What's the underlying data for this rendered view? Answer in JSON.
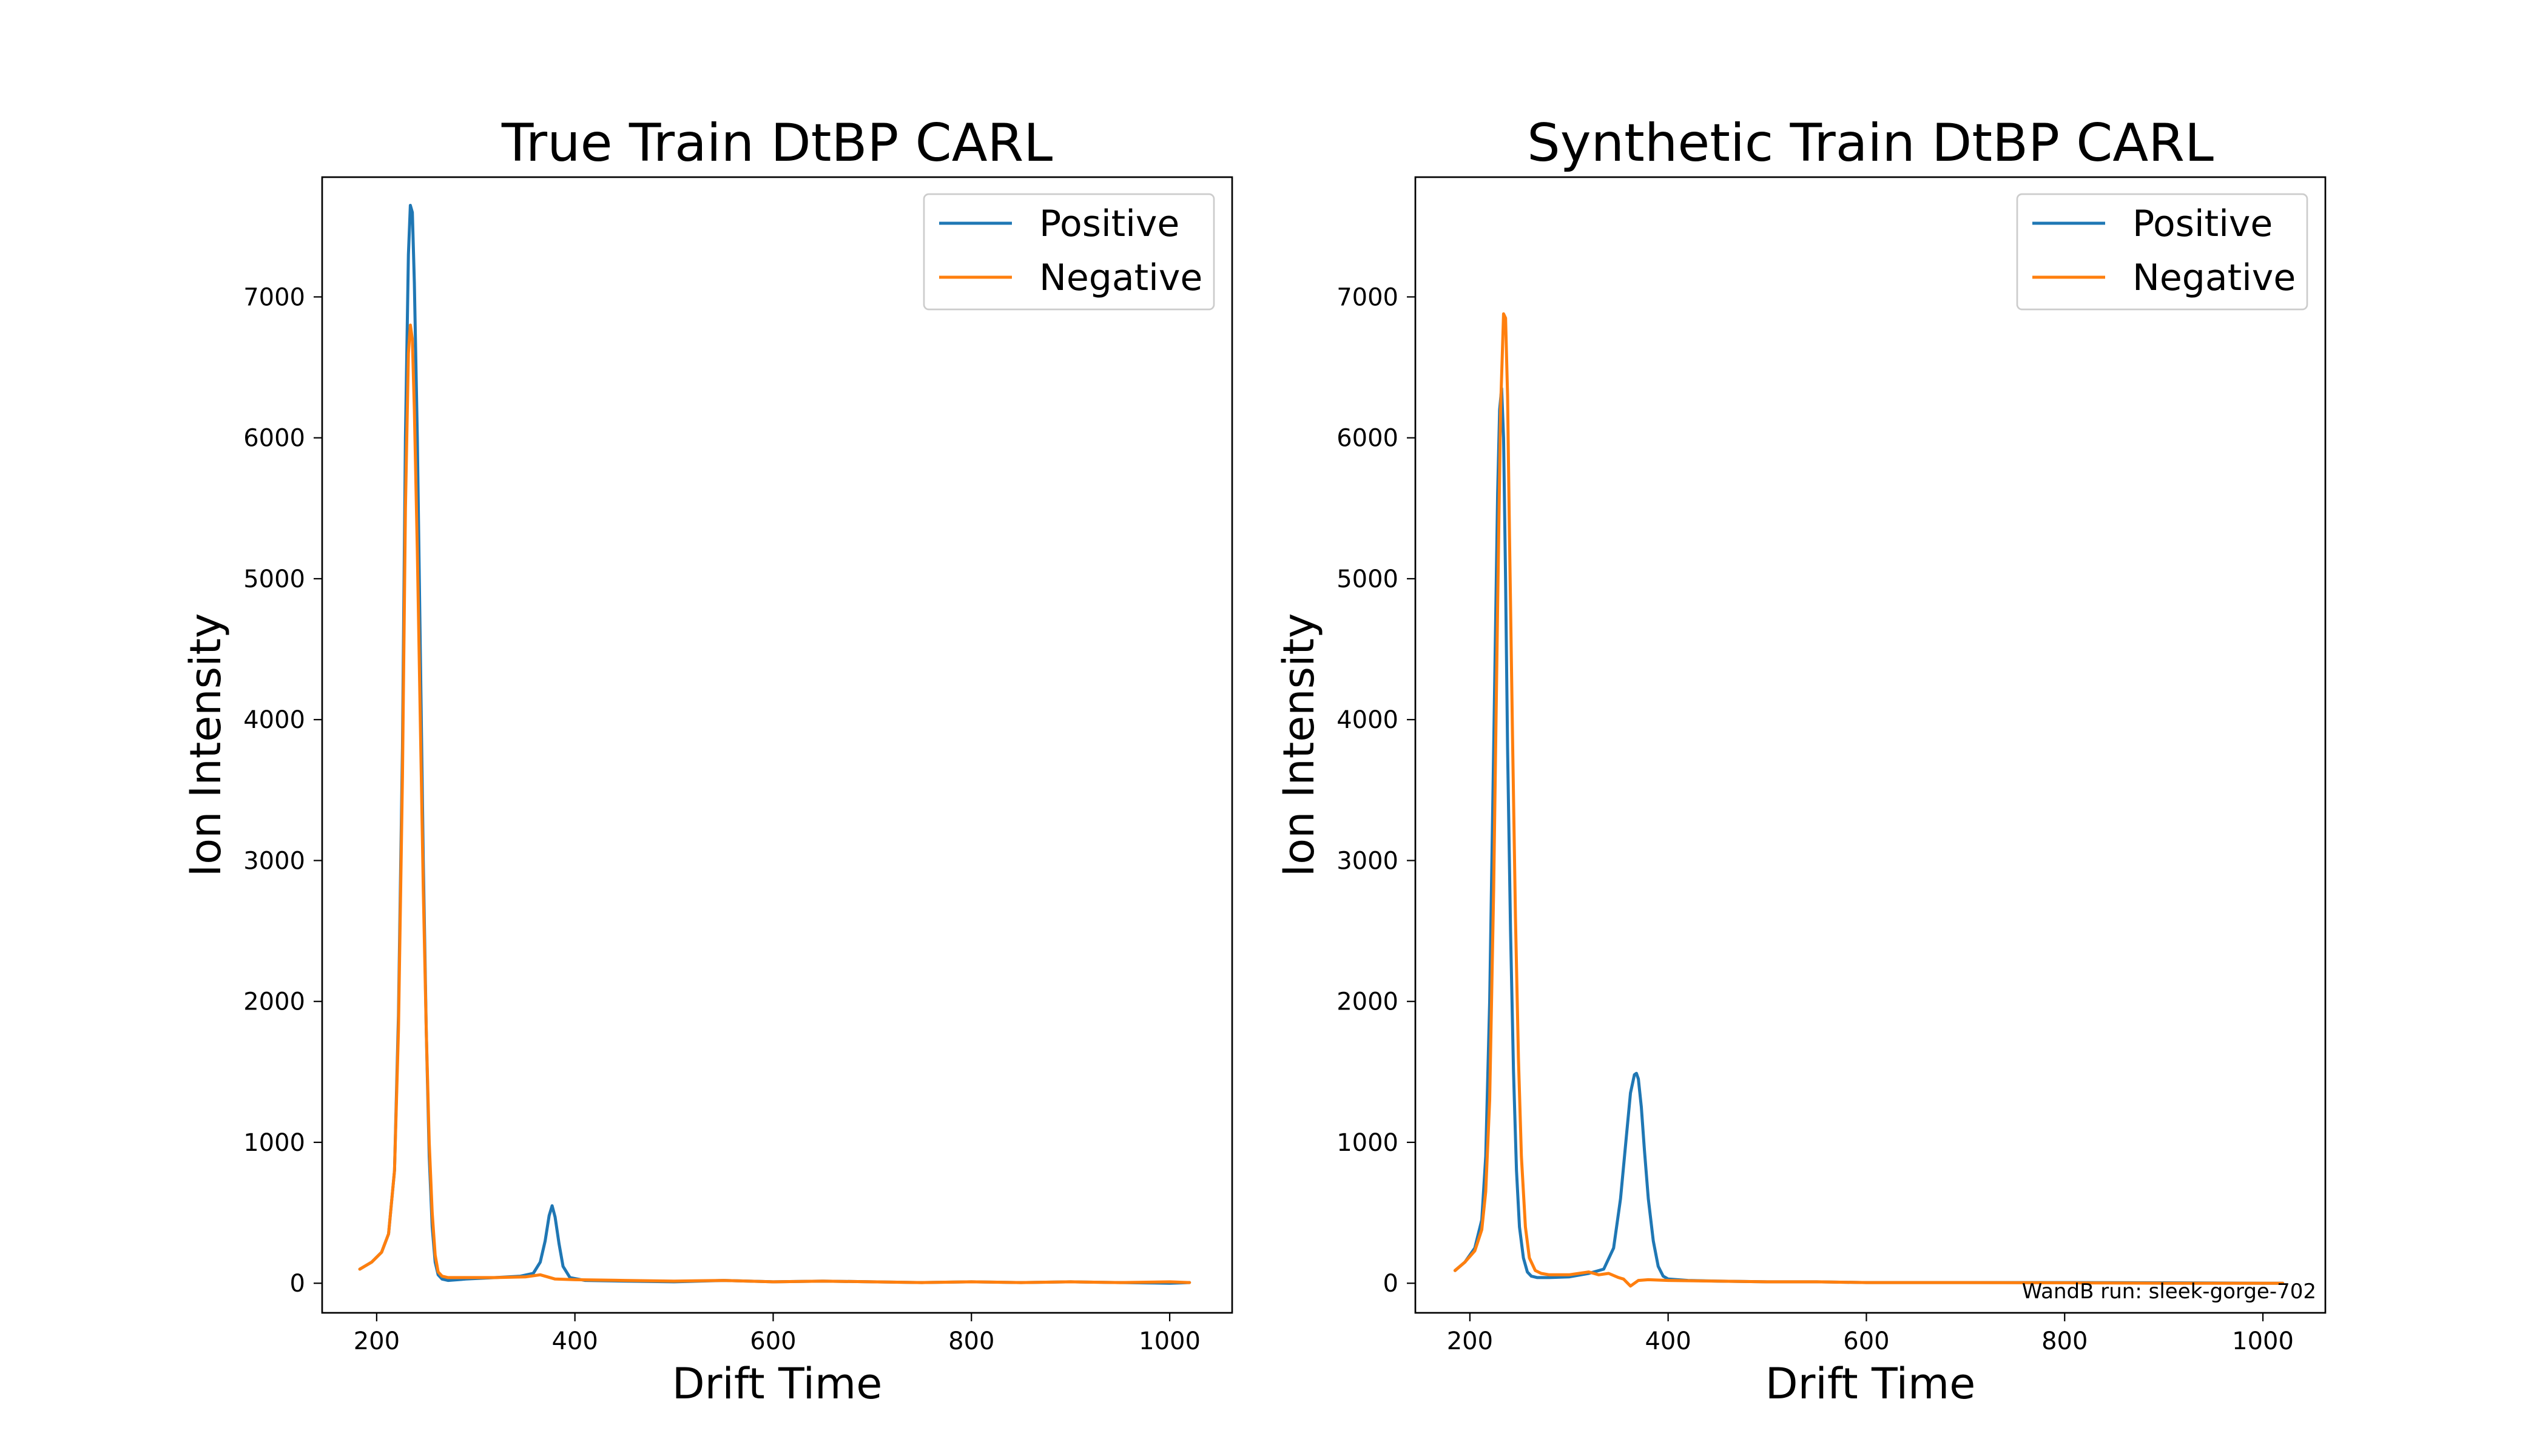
{
  "chart_data": [
    {
      "type": "line",
      "title": "True Train DtBP CARL",
      "xlabel": "Drift Time",
      "ylabel": "Ion Intensity",
      "xlim": [
        145,
        1063
      ],
      "ylim": [
        -210,
        7850
      ],
      "xticks": [
        200,
        400,
        600,
        800,
        1000
      ],
      "yticks": [
        0,
        1000,
        2000,
        3000,
        4000,
        5000,
        6000,
        7000
      ],
      "legend": "top-right",
      "grid": false,
      "series": [
        {
          "name": "Positive",
          "color": "#1f77b4",
          "x": [
            183,
            195,
            205,
            212,
            218,
            222,
            226,
            229,
            232,
            234,
            236,
            238,
            241,
            244,
            247,
            250,
            253,
            256,
            259,
            262,
            266,
            272,
            290,
            320,
            345,
            358,
            365,
            370,
            374,
            377,
            380,
            384,
            388,
            395,
            410,
            450,
            500,
            550,
            600,
            650,
            700,
            750,
            800,
            850,
            900,
            950,
            1000,
            1020
          ],
          "y": [
            100,
            150,
            220,
            350,
            800,
            1900,
            3800,
            6000,
            7300,
            7650,
            7600,
            7100,
            6000,
            4500,
            3000,
            1800,
            900,
            400,
            150,
            60,
            30,
            20,
            30,
            40,
            50,
            70,
            150,
            300,
            480,
            550,
            470,
            280,
            120,
            40,
            20,
            15,
            10,
            20,
            10,
            15,
            10,
            5,
            10,
            5,
            10,
            5,
            0,
            5
          ]
        },
        {
          "name": "Negative",
          "color": "#ff7f0e",
          "x": [
            183,
            195,
            205,
            212,
            218,
            222,
            226,
            229,
            232,
            234,
            236,
            238,
            241,
            244,
            247,
            250,
            253,
            256,
            259,
            262,
            266,
            272,
            290,
            320,
            350,
            365,
            380,
            400,
            450,
            500,
            550,
            600,
            650,
            700,
            750,
            800,
            850,
            900,
            950,
            1000,
            1020
          ],
          "y": [
            100,
            150,
            220,
            350,
            800,
            1800,
            3600,
            5500,
            6600,
            6800,
            6700,
            6200,
            5200,
            4000,
            2800,
            1800,
            1000,
            500,
            200,
            80,
            50,
            40,
            40,
            40,
            45,
            60,
            30,
            25,
            20,
            15,
            20,
            10,
            15,
            10,
            5,
            10,
            5,
            10,
            5,
            10,
            5
          ]
        }
      ]
    },
    {
      "type": "line",
      "title": "Synthetic Train DtBP CARL",
      "xlabel": "Drift Time",
      "ylabel": "Ion Intensity",
      "xlim": [
        145,
        1063
      ],
      "ylim": [
        -210,
        7850
      ],
      "xticks": [
        200,
        400,
        600,
        800,
        1000
      ],
      "yticks": [
        0,
        1000,
        2000,
        3000,
        4000,
        5000,
        6000,
        7000
      ],
      "legend": "top-right",
      "grid": false,
      "annotation": "WandB run: sleek-gorge-702",
      "series": [
        {
          "name": "Positive",
          "color": "#1f77b4",
          "x": [
            185,
            195,
            205,
            212,
            216,
            220,
            224,
            228,
            230,
            232,
            234,
            236,
            238,
            241,
            244,
            247,
            250,
            254,
            258,
            262,
            268,
            280,
            300,
            320,
            335,
            345,
            352,
            358,
            362,
            366,
            368,
            370,
            373,
            376,
            380,
            385,
            390,
            395,
            400,
            420,
            450,
            500,
            550,
            600,
            700,
            800,
            900,
            1000,
            1020
          ],
          "y": [
            90,
            150,
            250,
            450,
            900,
            2000,
            3800,
            5600,
            6200,
            6350,
            6000,
            5000,
            3800,
            2500,
            1500,
            800,
            400,
            180,
            80,
            50,
            40,
            40,
            45,
            70,
            100,
            250,
            600,
            1050,
            1350,
            1480,
            1490,
            1450,
            1250,
            950,
            600,
            300,
            120,
            50,
            30,
            20,
            15,
            10,
            10,
            5,
            5,
            5,
            3,
            0,
            0
          ]
        },
        {
          "name": "Negative",
          "color": "#ff7f0e",
          "x": [
            185,
            195,
            205,
            212,
            216,
            220,
            224,
            228,
            231,
            234,
            236,
            238,
            240,
            243,
            246,
            249,
            252,
            256,
            260,
            266,
            272,
            280,
            300,
            320,
            330,
            340,
            350,
            355,
            362,
            370,
            380,
            400,
            450,
            500,
            550,
            600,
            700,
            800,
            900,
            1000,
            1020
          ],
          "y": [
            90,
            150,
            230,
            380,
            650,
            1300,
            2800,
            4800,
            6200,
            6880,
            6850,
            6300,
            5300,
            3900,
            2600,
            1600,
            900,
            400,
            180,
            90,
            70,
            60,
            60,
            80,
            60,
            70,
            40,
            30,
            -20,
            20,
            25,
            20,
            15,
            10,
            10,
            5,
            5,
            3,
            0,
            0,
            0
          ]
        }
      ]
    }
  ]
}
